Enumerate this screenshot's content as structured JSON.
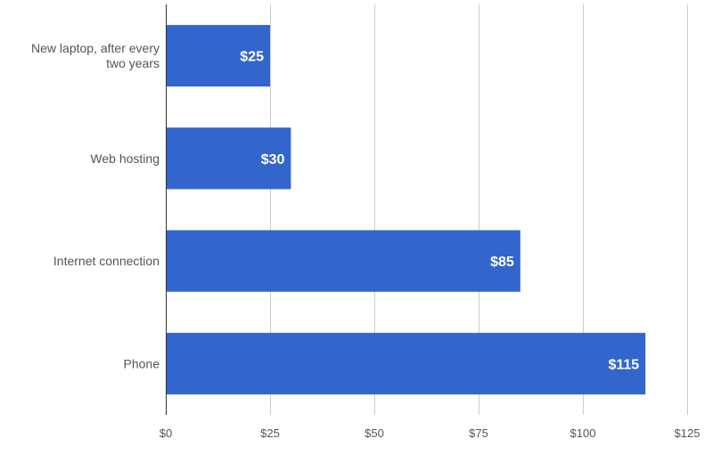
{
  "chart_data": {
    "type": "bar",
    "orientation": "horizontal",
    "title": "",
    "xlabel": "",
    "ylabel": "",
    "categories": [
      [
        "New laptop, after every",
        "two years"
      ],
      [
        "Web hosting"
      ],
      [
        "Internet connection"
      ],
      [
        "Phone"
      ]
    ],
    "values": [
      25,
      30,
      85,
      115
    ],
    "data_labels": [
      "$25",
      "$30",
      "$85",
      "$115"
    ],
    "xlim": [
      0,
      125
    ],
    "x_ticks": [
      0,
      25,
      50,
      75,
      100,
      125
    ],
    "x_tick_labels": [
      "$0",
      "$25",
      "$50",
      "$75",
      "$100",
      "$125"
    ],
    "grid": true,
    "legend": "none",
    "colors": {
      "bar": "#3366cc",
      "grid": "#cccccc",
      "axis": "#333333",
      "text": "#555555",
      "data_label": "#ffffff"
    }
  }
}
